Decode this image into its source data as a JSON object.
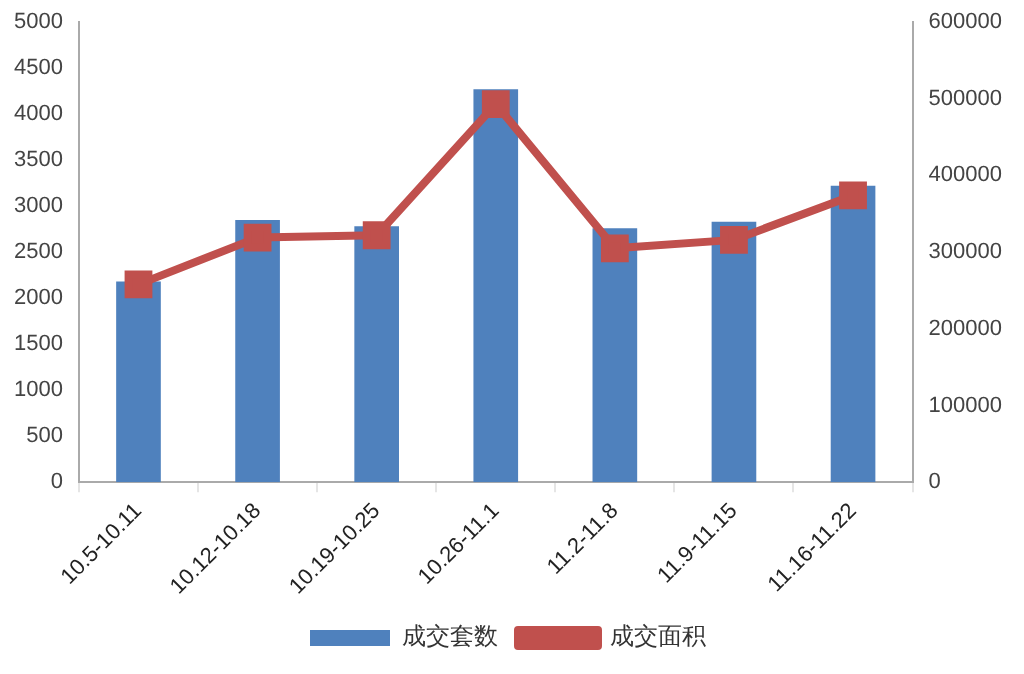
{
  "chart_data": {
    "type": "bar",
    "categories": [
      "10.5-10.11",
      "10.12-10.18",
      "10.19-10.25",
      "10.26-11.1",
      "11.2-11.8",
      "11.9-11.15",
      "11.16-11.22"
    ],
    "series": [
      {
        "name": "成交套数",
        "color": "#4f81bd",
        "values": [
          2180,
          2850,
          2780,
          4270,
          2760,
          2830,
          3220
        ]
      },
      {
        "name": "成交面积",
        "type": "line",
        "axis": "y2",
        "color": "#c0504d",
        "marker": "square",
        "values": [
          258000,
          319000,
          322000,
          493000,
          305000,
          316000,
          374000
        ]
      }
    ],
    "ylim": [
      0,
      5000
    ],
    "yticks": [
      0,
      500,
      1000,
      1500,
      2000,
      2500,
      3000,
      3500,
      4000,
      4500,
      5000
    ],
    "y2lim": [
      0,
      600000
    ],
    "y2ticks": [
      0,
      100000,
      200000,
      300000,
      400000,
      500000,
      600000
    ],
    "grid": false,
    "legend": "bottom"
  }
}
